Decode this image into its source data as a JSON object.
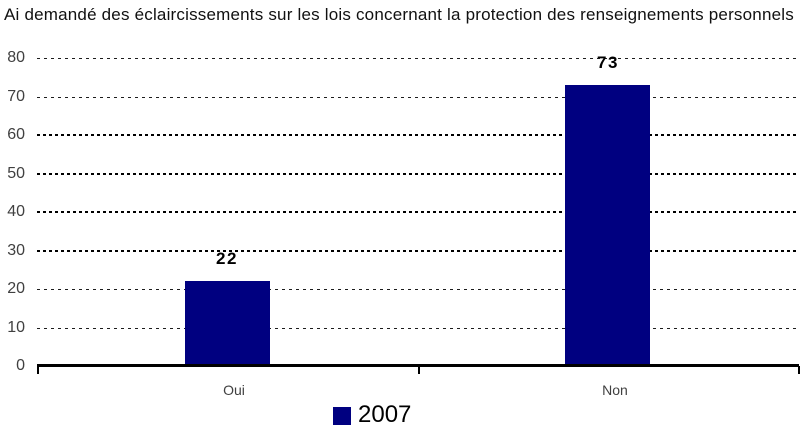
{
  "chart_data": {
    "type": "bar",
    "title": "Ai demandé des éclaircissements sur les lois concernant la protection des renseignements personnels",
    "categories": [
      "Oui",
      "Non"
    ],
    "series": [
      {
        "name": "2007",
        "color": "#000080",
        "values": [
          22,
          73
        ]
      }
    ],
    "value_labels": [
      "22",
      "73"
    ],
    "ylim": [
      0,
      80
    ],
    "ytick_interval": 10,
    "yticks": [
      0,
      10,
      20,
      30,
      40,
      50,
      60,
      70,
      80
    ],
    "grid": "horizontal-dotted",
    "legend_position": "bottom-center",
    "axis_color": "#000000",
    "bar_color": "#000080",
    "tick_label_color": "#404040"
  },
  "legend": {
    "label": "2007",
    "swatch_color": "#000080"
  }
}
